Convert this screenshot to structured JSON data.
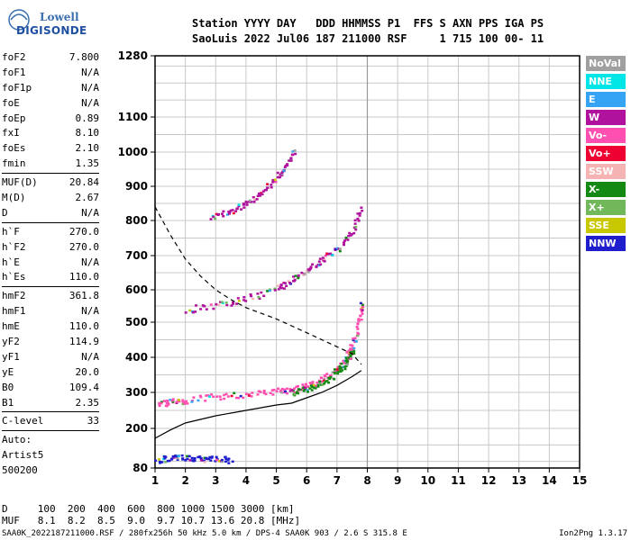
{
  "logo": {
    "line1": "Lowell",
    "line2": "DIGISONDE"
  },
  "header": {
    "line1": "Station YYYY DAY   DDD HHMMSS P1  FFS S AXN PPS IGA PS",
    "line2": "SaoLuis 2022 Jul06 187 211000 RSF     1 715 100 00- 11"
  },
  "params": {
    "groups": [
      [
        [
          "foF2",
          "7.800"
        ],
        [
          "foF1",
          "N/A"
        ],
        [
          "foF1p",
          "N/A"
        ],
        [
          "foE",
          "N/A"
        ],
        [
          "foEp",
          "0.89"
        ],
        [
          "fxI",
          "8.10"
        ],
        [
          "foEs",
          "2.10"
        ],
        [
          "fmin",
          "1.35"
        ]
      ],
      [
        [
          "MUF(D)",
          "20.84"
        ],
        [
          "M(D)",
          "2.67"
        ],
        [
          "D",
          "N/A"
        ]
      ],
      [
        [
          "h`F",
          "270.0"
        ],
        [
          "h`F2",
          "270.0"
        ],
        [
          "h`E",
          "N/A"
        ],
        [
          "h`Es",
          "110.0"
        ]
      ],
      [
        [
          "hmF2",
          "361.8"
        ],
        [
          "hmF1",
          "N/A"
        ],
        [
          "hmE",
          "110.0"
        ],
        [
          "yF2",
          "114.9"
        ],
        [
          "yF1",
          "N/A"
        ],
        [
          "yE",
          "20.0"
        ],
        [
          "B0",
          "109.4"
        ],
        [
          "B1",
          "2.35"
        ]
      ],
      [
        [
          "C-level",
          "33"
        ]
      ]
    ],
    "auto_lines": [
      "Auto:",
      "Artist5",
      "500200"
    ]
  },
  "legend": [
    {
      "label": "NoVal",
      "color": "#a0a0a0"
    },
    {
      "label": "NNE",
      "color": "#00e5e5"
    },
    {
      "label": "E",
      "color": "#35a4f5"
    },
    {
      "label": "W",
      "color": "#b0129e"
    },
    {
      "label": "Vo-",
      "color": "#ff4fb0"
    },
    {
      "label": "Vo+",
      "color": "#ee0033"
    },
    {
      "label": "SSW",
      "color": "#f5b3b3"
    },
    {
      "label": "X-",
      "color": "#148a14"
    },
    {
      "label": "X+",
      "color": "#70b85a"
    },
    {
      "label": "SSE",
      "color": "#c8c800"
    },
    {
      "label": "NNW",
      "color": "#1e1ecc"
    }
  ],
  "chart_data": {
    "type": "scatter",
    "title": "",
    "xlabel": "",
    "ylabel": "",
    "xlim": [
      1,
      15
    ],
    "ylim": [
      80,
      1280
    ],
    "y_scale": "nonlinear",
    "x_ticks": [
      1,
      2,
      3,
      4,
      5,
      6,
      7,
      8,
      9,
      10,
      11,
      12,
      13,
      14,
      15
    ],
    "y_ticks": [
      80,
      200,
      300,
      400,
      500,
      600,
      700,
      800,
      900,
      1000,
      1100,
      1280
    ],
    "grid": true,
    "traces": [
      {
        "name": "O-trace F2",
        "color": "#ff4fb0",
        "points": [
          [
            1.1,
            272
          ],
          [
            1.5,
            275
          ],
          [
            2,
            280
          ],
          [
            3,
            290
          ],
          [
            4,
            298
          ],
          [
            5,
            305
          ],
          [
            5.5,
            310
          ],
          [
            6,
            320
          ],
          [
            6.5,
            340
          ],
          [
            7,
            370
          ],
          [
            7.3,
            400
          ],
          [
            7.5,
            440
          ],
          [
            7.7,
            500
          ],
          [
            7.8,
            570
          ]
        ]
      },
      {
        "name": "X-trace F2",
        "color": "#148a14",
        "points": [
          [
            5.5,
            302
          ],
          [
            6,
            312
          ],
          [
            6.5,
            330
          ],
          [
            7,
            360
          ],
          [
            7.3,
            390
          ],
          [
            7.5,
            420
          ]
        ]
      },
      {
        "name": "O-trace 2F2",
        "color": "#b0129e",
        "points": [
          [
            2,
            540
          ],
          [
            3,
            555
          ],
          [
            4,
            575
          ],
          [
            5,
            605
          ],
          [
            5.5,
            630
          ],
          [
            6,
            660
          ],
          [
            6.5,
            690
          ],
          [
            7,
            720
          ],
          [
            7.5,
            770
          ],
          [
            7.8,
            840
          ]
        ]
      },
      {
        "name": "O-trace 3F2",
        "color": "#b0129e",
        "points": [
          [
            2.8,
            810
          ],
          [
            3.5,
            830
          ],
          [
            4,
            855
          ],
          [
            4.5,
            880
          ],
          [
            5,
            930
          ],
          [
            5.3,
            960
          ],
          [
            5.6,
            1010
          ]
        ]
      },
      {
        "name": "Es",
        "color": "#1e1ecc",
        "points": [
          [
            1,
            105
          ],
          [
            1.5,
            115
          ],
          [
            2,
            115
          ],
          [
            2.5,
            110
          ],
          [
            3,
            110
          ],
          [
            3.5,
            105
          ]
        ]
      }
    ],
    "profile_curve": [
      [
        1,
        170
      ],
      [
        1.5,
        195
      ],
      [
        2,
        215
      ],
      [
        3,
        235
      ],
      [
        4,
        250
      ],
      [
        5,
        265
      ],
      [
        5.5,
        270
      ],
      [
        6,
        285
      ],
      [
        6.5,
        300
      ],
      [
        7,
        320
      ],
      [
        7.5,
        345
      ],
      [
        7.8,
        362
      ]
    ],
    "muf_curve": [
      [
        1,
        840
      ],
      [
        1.5,
        760
      ],
      [
        2,
        690
      ],
      [
        2.5,
        640
      ],
      [
        3,
        600
      ],
      [
        3.5,
        570
      ],
      [
        4,
        545
      ],
      [
        5,
        510
      ],
      [
        6,
        470
      ],
      [
        6.5,
        450
      ],
      [
        7,
        430
      ],
      [
        7.5,
        410
      ],
      [
        7.8,
        380
      ]
    ]
  },
  "tables": {
    "d_row": "D     100  200  400  600  800 1000 1500 3000 [km]",
    "muf_row": "MUF   8.1  8.2  8.5  9.0  9.7 10.7 13.6 20.8 [MHz]"
  },
  "footer": "SAA0K_2022187211000.RSF / 280fx256h 50 kHz 5.0 km / DPS-4 SAA0K 903 / 2.6 S 315.8 E",
  "version": "Ion2Png 1.3.17"
}
